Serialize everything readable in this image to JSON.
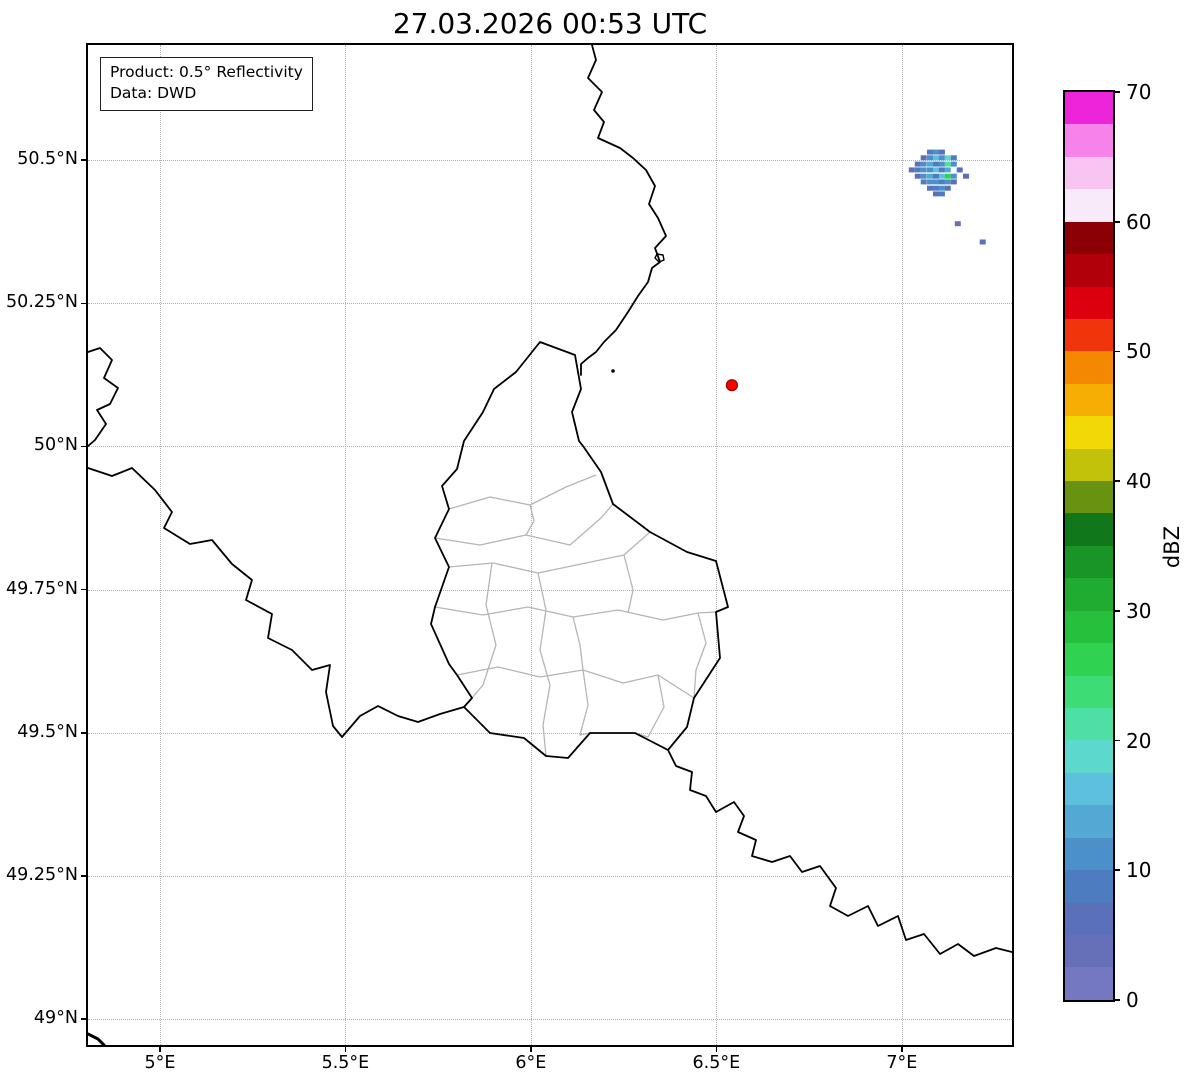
{
  "title": "27.03.2026 00:53 UTC",
  "legend": {
    "product": "Product: 0.5° Reflectivity",
    "source": "Data: DWD"
  },
  "axes": {
    "lon_min": 4.806,
    "lon_max": 7.297,
    "lat_min": 48.955,
    "lat_max": 50.701,
    "x_ticks": [
      {
        "value": 5.0,
        "label": "5°E"
      },
      {
        "value": 5.5,
        "label": "5.5°E"
      },
      {
        "value": 6.0,
        "label": "6°E"
      },
      {
        "value": 6.5,
        "label": "6.5°E"
      },
      {
        "value": 7.0,
        "label": "7°E"
      }
    ],
    "y_ticks": [
      {
        "value": 50.5,
        "label": "50.5°N"
      },
      {
        "value": 50.25,
        "label": "50.25°N"
      },
      {
        "value": 50.0,
        "label": "50°N"
      },
      {
        "value": 49.75,
        "label": "49.75°N"
      },
      {
        "value": 49.5,
        "label": "49.5°N"
      },
      {
        "value": 49.25,
        "label": "49.25°N"
      },
      {
        "value": 49.0,
        "label": "49°N"
      }
    ]
  },
  "colorbar": {
    "label": "dBZ",
    "min": 0,
    "max": 70,
    "step": 2.5,
    "ticks": [
      {
        "value": 0,
        "label": "0"
      },
      {
        "value": 10,
        "label": "10"
      },
      {
        "value": 20,
        "label": "20"
      },
      {
        "value": 30,
        "label": "30"
      },
      {
        "value": 40,
        "label": "40"
      },
      {
        "value": 50,
        "label": "50"
      },
      {
        "value": 60,
        "label": "60"
      },
      {
        "value": 70,
        "label": "70"
      }
    ],
    "segments": [
      "#7478c0",
      "#6670b9",
      "#5a71ba",
      "#4d7cc0",
      "#4b90c9",
      "#53a9d4",
      "#5dc1dd",
      "#5cd8cd",
      "#4edfa4",
      "#3edc74",
      "#2fd351",
      "#27c03c",
      "#1fac30",
      "#189526",
      "#11771b",
      "#679310",
      "#c2c20b",
      "#f2d806",
      "#f6ad04",
      "#f58802",
      "#f0340c",
      "#dc000e",
      "#b2000a",
      "#8b0005",
      "#f9eafa",
      "#f8c4f1",
      "#f583e9",
      "#ec25da"
    ]
  },
  "radar_marker": {
    "lon": 6.542,
    "lat": 50.107,
    "color": "#ff0000",
    "edge_color": "#990000"
  },
  "chart_data": {
    "type": "radar_reflectivity_map",
    "timestamp": "27.03.2026 00:53 UTC",
    "product": "0.5° Reflectivity",
    "source": "DWD",
    "units": "dBZ",
    "echo_cells": [
      {
        "lon": 7.076,
        "lat": 50.514,
        "dbz": 8
      },
      {
        "lon": 7.092,
        "lat": 50.514,
        "dbz": 10
      },
      {
        "lon": 7.108,
        "lat": 50.514,
        "dbz": 7
      },
      {
        "lon": 7.059,
        "lat": 50.504,
        "dbz": 6
      },
      {
        "lon": 7.076,
        "lat": 50.504,
        "dbz": 12
      },
      {
        "lon": 7.092,
        "lat": 50.504,
        "dbz": 15
      },
      {
        "lon": 7.108,
        "lat": 50.504,
        "dbz": 10
      },
      {
        "lon": 7.124,
        "lat": 50.504,
        "dbz": 18
      },
      {
        "lon": 7.14,
        "lat": 50.504,
        "dbz": 8
      },
      {
        "lon": 7.043,
        "lat": 50.493,
        "dbz": 7
      },
      {
        "lon": 7.059,
        "lat": 50.493,
        "dbz": 10
      },
      {
        "lon": 7.076,
        "lat": 50.493,
        "dbz": 14
      },
      {
        "lon": 7.092,
        "lat": 50.493,
        "dbz": 8
      },
      {
        "lon": 7.108,
        "lat": 50.493,
        "dbz": 12
      },
      {
        "lon": 7.124,
        "lat": 50.493,
        "dbz": 22
      },
      {
        "lon": 7.14,
        "lat": 50.493,
        "dbz": 12
      },
      {
        "lon": 7.027,
        "lat": 50.483,
        "dbz": 5
      },
      {
        "lon": 7.043,
        "lat": 50.483,
        "dbz": 9
      },
      {
        "lon": 7.059,
        "lat": 50.483,
        "dbz": 12
      },
      {
        "lon": 7.076,
        "lat": 50.483,
        "dbz": 10
      },
      {
        "lon": 7.092,
        "lat": 50.483,
        "dbz": 16
      },
      {
        "lon": 7.108,
        "lat": 50.483,
        "dbz": 9
      },
      {
        "lon": 7.124,
        "lat": 50.483,
        "dbz": 14
      },
      {
        "lon": 7.156,
        "lat": 50.483,
        "dbz": 7
      },
      {
        "lon": 7.043,
        "lat": 50.472,
        "dbz": 6
      },
      {
        "lon": 7.059,
        "lat": 50.472,
        "dbz": 11
      },
      {
        "lon": 7.076,
        "lat": 50.472,
        "dbz": 13
      },
      {
        "lon": 7.092,
        "lat": 50.472,
        "dbz": 9
      },
      {
        "lon": 7.108,
        "lat": 50.472,
        "dbz": 17
      },
      {
        "lon": 7.124,
        "lat": 50.472,
        "dbz": 25
      },
      {
        "lon": 7.14,
        "lat": 50.472,
        "dbz": 10
      },
      {
        "lon": 7.173,
        "lat": 50.472,
        "dbz": 5
      },
      {
        "lon": 7.059,
        "lat": 50.462,
        "dbz": 8
      },
      {
        "lon": 7.076,
        "lat": 50.462,
        "dbz": 10
      },
      {
        "lon": 7.092,
        "lat": 50.462,
        "dbz": 12
      },
      {
        "lon": 7.108,
        "lat": 50.462,
        "dbz": 8
      },
      {
        "lon": 7.124,
        "lat": 50.462,
        "dbz": 11
      },
      {
        "lon": 7.14,
        "lat": 50.462,
        "dbz": 6
      },
      {
        "lon": 7.076,
        "lat": 50.451,
        "dbz": 7
      },
      {
        "lon": 7.092,
        "lat": 50.451,
        "dbz": 9
      },
      {
        "lon": 7.108,
        "lat": 50.451,
        "dbz": 10
      },
      {
        "lon": 7.124,
        "lat": 50.451,
        "dbz": 6
      },
      {
        "lon": 7.092,
        "lat": 50.441,
        "dbz": 6
      },
      {
        "lon": 7.108,
        "lat": 50.441,
        "dbz": 8
      },
      {
        "lon": 7.151,
        "lat": 50.389,
        "dbz": 4
      },
      {
        "lon": 7.218,
        "lat": 50.357,
        "dbz": 6
      }
    ]
  }
}
